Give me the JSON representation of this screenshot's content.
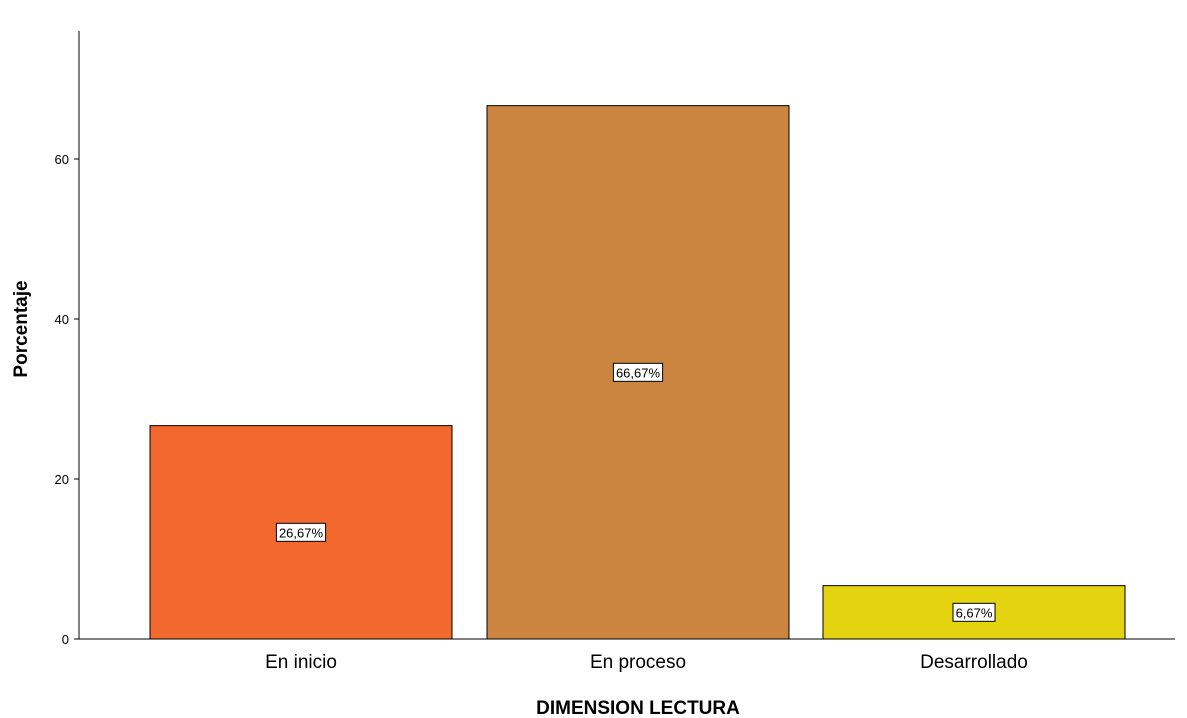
{
  "chart_data": {
    "type": "bar",
    "categories": [
      "En inicio",
      "En proceso",
      "Desarrollado"
    ],
    "values": [
      26.67,
      66.67,
      6.67
    ],
    "data_labels": [
      "26,67%",
      "66,67%",
      "6,67%"
    ],
    "colors": [
      "#f2682d",
      "#cc8540",
      "#e3d40f"
    ],
    "xlabel": "DIMENSION LECTURA",
    "ylabel": "Porcentaje",
    "ylim": [
      0,
      76
    ],
    "yticks": [
      0,
      20,
      40,
      60
    ],
    "ytick_labels": [
      "0",
      "20",
      "40",
      "60"
    ],
    "grid": false,
    "legend": "none"
  }
}
